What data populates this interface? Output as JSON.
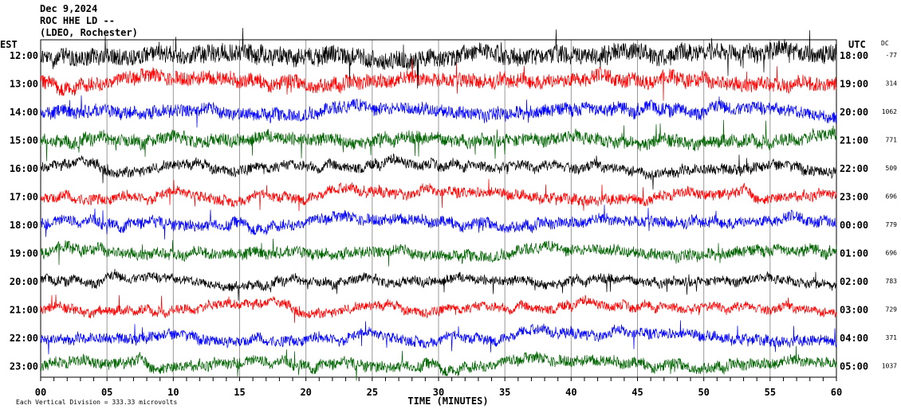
{
  "header": {
    "date": "Dec 9,2024",
    "station": "ROC HHE LD --",
    "location": "(LDEO, Rochester)"
  },
  "chart_data": {
    "type": "line",
    "title": "Dec 9,2024 ROC HHE LD -- (LDEO, Rochester)",
    "xlabel": "TIME (MINUTES)",
    "xlim": [
      0,
      60
    ],
    "x_ticks": [
      "00",
      "05",
      "10",
      "15",
      "20",
      "25",
      "30",
      "35",
      "40",
      "45",
      "50",
      "55",
      "60"
    ],
    "left_axis_title": "EST",
    "right_axis_title": "UTC",
    "dc_title": "DC",
    "scale_note": "Each Vertical Division =  333.33 microvolts",
    "colors": [
      "#000000",
      "#ff0000",
      "#0000ff",
      "#006400"
    ],
    "rows": [
      {
        "est": "12:00",
        "utc": "18:00",
        "dc": "-77",
        "amp": 1.0
      },
      {
        "est": "13:00",
        "utc": "19:00",
        "dc": "314",
        "amp": 0.8
      },
      {
        "est": "14:00",
        "utc": "20:00",
        "dc": "1062",
        "amp": 0.7
      },
      {
        "est": "15:00",
        "utc": "21:00",
        "dc": "771",
        "amp": 0.7
      },
      {
        "est": "16:00",
        "utc": "22:00",
        "dc": "509",
        "amp": 0.55
      },
      {
        "est": "17:00",
        "utc": "23:00",
        "dc": "696",
        "amp": 0.55
      },
      {
        "est": "18:00",
        "utc": "00:00",
        "dc": "779",
        "amp": 0.6
      },
      {
        "est": "19:00",
        "utc": "01:00",
        "dc": "696",
        "amp": 0.6
      },
      {
        "est": "20:00",
        "utc": "02:00",
        "dc": "783",
        "amp": 0.5
      },
      {
        "est": "21:00",
        "utc": "03:00",
        "dc": "729",
        "amp": 0.5
      },
      {
        "est": "22:00",
        "utc": "04:00",
        "dc": "371",
        "amp": 0.55
      },
      {
        "est": "23:00",
        "utc": "05:00",
        "dc": "1037",
        "amp": 0.6
      }
    ]
  }
}
